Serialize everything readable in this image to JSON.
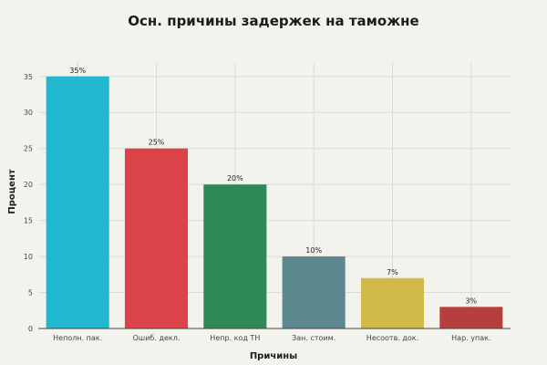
{
  "chart_data": {
    "type": "bar",
    "title": "Осн. причины задержек на таможне",
    "xlabel": "Причины",
    "ylabel": "Процент",
    "categories": [
      "Неполн. пак.",
      "Ошиб. декл.",
      "Непр. код ТН",
      "Зан. стоим.",
      "Несоотв. док.",
      "Нар. упак."
    ],
    "values": [
      35,
      25,
      20,
      10,
      7,
      3
    ],
    "data_labels": [
      "35%",
      "25%",
      "20%",
      "10%",
      "7%",
      "3%"
    ],
    "colors": [
      "#22b8cf",
      "#dc4348",
      "#2d8a57",
      "#5e8890",
      "#d2ba4a",
      "#b43f3c"
    ],
    "ylim": [
      0,
      37
    ],
    "yticks": [
      0,
      5,
      10,
      15,
      20,
      25,
      30,
      35
    ],
    "ytick_labels": [
      "0",
      "5",
      "10",
      "15",
      "20",
      "25",
      "30",
      "35"
    ],
    "grid": true,
    "legend": "none"
  }
}
